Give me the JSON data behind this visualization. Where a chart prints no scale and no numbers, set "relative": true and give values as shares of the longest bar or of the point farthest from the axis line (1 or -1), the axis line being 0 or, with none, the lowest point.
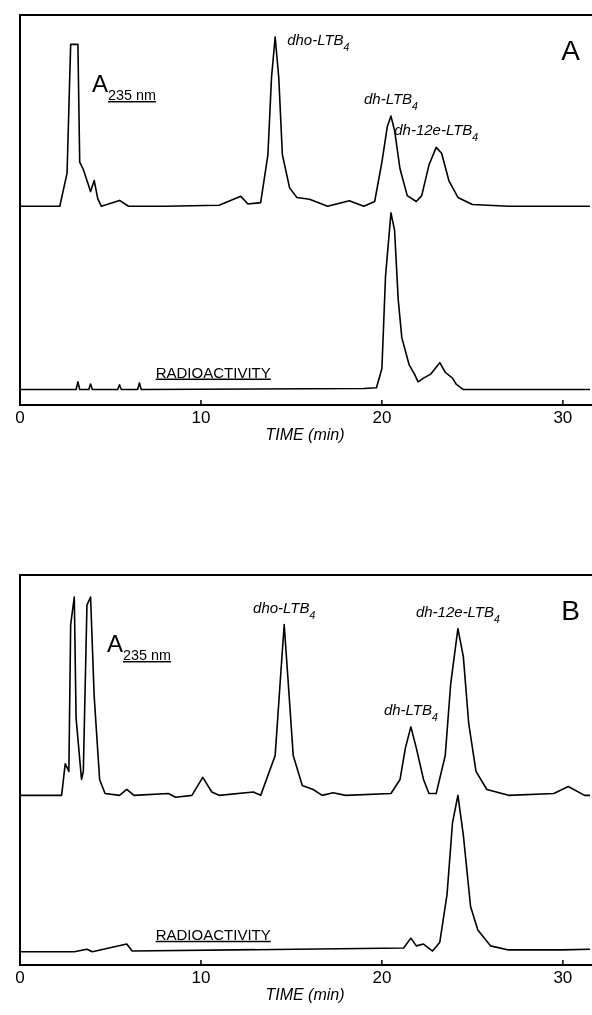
{
  "chart_data": [
    {
      "type": "line",
      "title": "A",
      "xlabel": "TIME (min)",
      "xlim": [
        0,
        31.5
      ],
      "xticks": [
        0,
        10,
        20,
        30
      ],
      "tick_labels": "x",
      "relative": true,
      "legend": false,
      "grid": false,
      "marker": "none",
      "line_style": "solid",
      "annotations": [
        {
          "text": "dho-LTB$_{4}$",
          "x": 14.1,
          "y": 1.0
        },
        {
          "text": "dh-LTB$_{4}$",
          "x": 20.5,
          "y": 0.785
        },
        {
          "text": "dh-12e-LTB$_{4}$",
          "x": 23.0,
          "y": 0.7
        }
      ],
      "series": [
        {
          "name": "A$_{235 nm}$",
          "color": "#000000",
          "x": [
            0,
            2.2,
            2.6,
            2.8,
            3.2,
            3.3,
            3.5,
            3.7,
            3.9,
            4.1,
            4.3,
            4.5,
            5.5,
            6.0,
            8,
            11,
            12.2,
            12.6,
            13.3,
            13.7,
            13.9,
            14.1,
            14.3,
            14.5,
            14.9,
            15.3,
            16,
            17,
            18.2,
            19,
            19.6,
            20.0,
            20.3,
            20.5,
            20.7,
            21.0,
            21.4,
            21.9,
            22.2,
            22.6,
            23.0,
            23.3,
            23.7,
            24.2,
            25,
            27,
            31.5
          ],
          "values": [
            0.54,
            0.54,
            0.63,
            0.98,
            0.98,
            0.66,
            0.64,
            0.61,
            0.58,
            0.61,
            0.56,
            0.54,
            0.556,
            0.54,
            0.54,
            0.543,
            0.567,
            0.546,
            0.55,
            0.68,
            0.89,
            1.0,
            0.89,
            0.68,
            0.59,
            0.564,
            0.559,
            0.54,
            0.555,
            0.54,
            0.553,
            0.66,
            0.757,
            0.785,
            0.746,
            0.642,
            0.569,
            0.553,
            0.569,
            0.652,
            0.7,
            0.684,
            0.61,
            0.564,
            0.545,
            0.54,
            0.54
          ]
        },
        {
          "name": "RADIOACTIVITY",
          "color": "#000000",
          "x": [
            0,
            3.1,
            3.2,
            3.3,
            3.8,
            3.9,
            4.0,
            5.4,
            5.5,
            5.6,
            6.5,
            6.6,
            6.7,
            19.0,
            19.7,
            20.0,
            20.2,
            20.5,
            20.7,
            20.9,
            21.1,
            21.5,
            21.8,
            22.0,
            22.3,
            22.7,
            23.2,
            23.5,
            23.9,
            24.1,
            24.5,
            31.5
          ],
          "values": [
            0.042,
            0.042,
            0.063,
            0.042,
            0.042,
            0.057,
            0.042,
            0.042,
            0.055,
            0.042,
            0.042,
            0.06,
            0.042,
            0.045,
            0.047,
            0.099,
            0.35,
            0.522,
            0.475,
            0.287,
            0.183,
            0.11,
            0.084,
            0.063,
            0.073,
            0.084,
            0.115,
            0.089,
            0.073,
            0.057,
            0.042,
            0.042
          ]
        }
      ]
    },
    {
      "type": "line",
      "title": "B",
      "xlabel": "TIME (min)",
      "xlim": [
        0,
        31.5
      ],
      "xticks": [
        0,
        10,
        20,
        30
      ],
      "tick_labels": "x",
      "relative": true,
      "legend": false,
      "grid": false,
      "marker": "none",
      "line_style": "solid",
      "annotations": [
        {
          "text": "dho-LTB$_{4}$",
          "x": 14.6,
          "y": 0.925
        },
        {
          "text": "dh-LTB$_{4}$",
          "x": 21.6,
          "y": 0.647
        },
        {
          "text": "dh-12e-LTB$_{4}$",
          "x": 24.2,
          "y": 0.914
        }
      ],
      "series": [
        {
          "name": "A$_{235 nm}$",
          "color": "#000000",
          "x": [
            0,
            2.3,
            2.5,
            2.7,
            2.8,
            3.0,
            3.1,
            3.4,
            3.5,
            3.7,
            3.9,
            4.1,
            4.4,
            4.7,
            5.5,
            5.9,
            6.3,
            8.2,
            8.6,
            9.5,
            10.1,
            10.6,
            11,
            12.9,
            13.3,
            14.1,
            14.4,
            14.6,
            14.8,
            15.1,
            15.6,
            16.2,
            16.7,
            17.3,
            18,
            20.5,
            21.0,
            21.3,
            21.6,
            21.9,
            22.3,
            22.6,
            23.0,
            23.5,
            23.8,
            24.2,
            24.5,
            24.8,
            25.2,
            25.8,
            27,
            29.5,
            30.3,
            31.2,
            31.5
          ],
          "values": [
            0.461,
            0.461,
            0.547,
            0.526,
            0.925,
            1.0,
            0.67,
            0.504,
            0.526,
            0.978,
            1.0,
            0.73,
            0.504,
            0.466,
            0.461,
            0.477,
            0.461,
            0.466,
            0.456,
            0.461,
            0.51,
            0.47,
            0.461,
            0.47,
            0.461,
            0.569,
            0.784,
            0.925,
            0.784,
            0.569,
            0.488,
            0.477,
            0.461,
            0.468,
            0.461,
            0.466,
            0.504,
            0.59,
            0.647,
            0.59,
            0.504,
            0.466,
            0.466,
            0.569,
            0.763,
            0.914,
            0.838,
            0.655,
            0.526,
            0.477,
            0.461,
            0.466,
            0.485,
            0.461,
            0.461
          ]
        },
        {
          "name": "RADIOACTIVITY",
          "color": "#000000",
          "x": [
            0,
            3.0,
            3.7,
            4.0,
            5.9,
            6.2,
            21.2,
            21.6,
            21.9,
            22.3,
            22.8,
            23.2,
            23.6,
            23.9,
            24.2,
            24.5,
            24.9,
            25.3,
            26,
            27,
            30,
            31.5
          ],
          "values": [
            0.036,
            0.036,
            0.043,
            0.036,
            0.057,
            0.038,
            0.046,
            0.073,
            0.052,
            0.057,
            0.038,
            0.062,
            0.192,
            0.386,
            0.461,
            0.353,
            0.159,
            0.095,
            0.052,
            0.041,
            0.041,
            0.043
          ]
        }
      ]
    }
  ]
}
